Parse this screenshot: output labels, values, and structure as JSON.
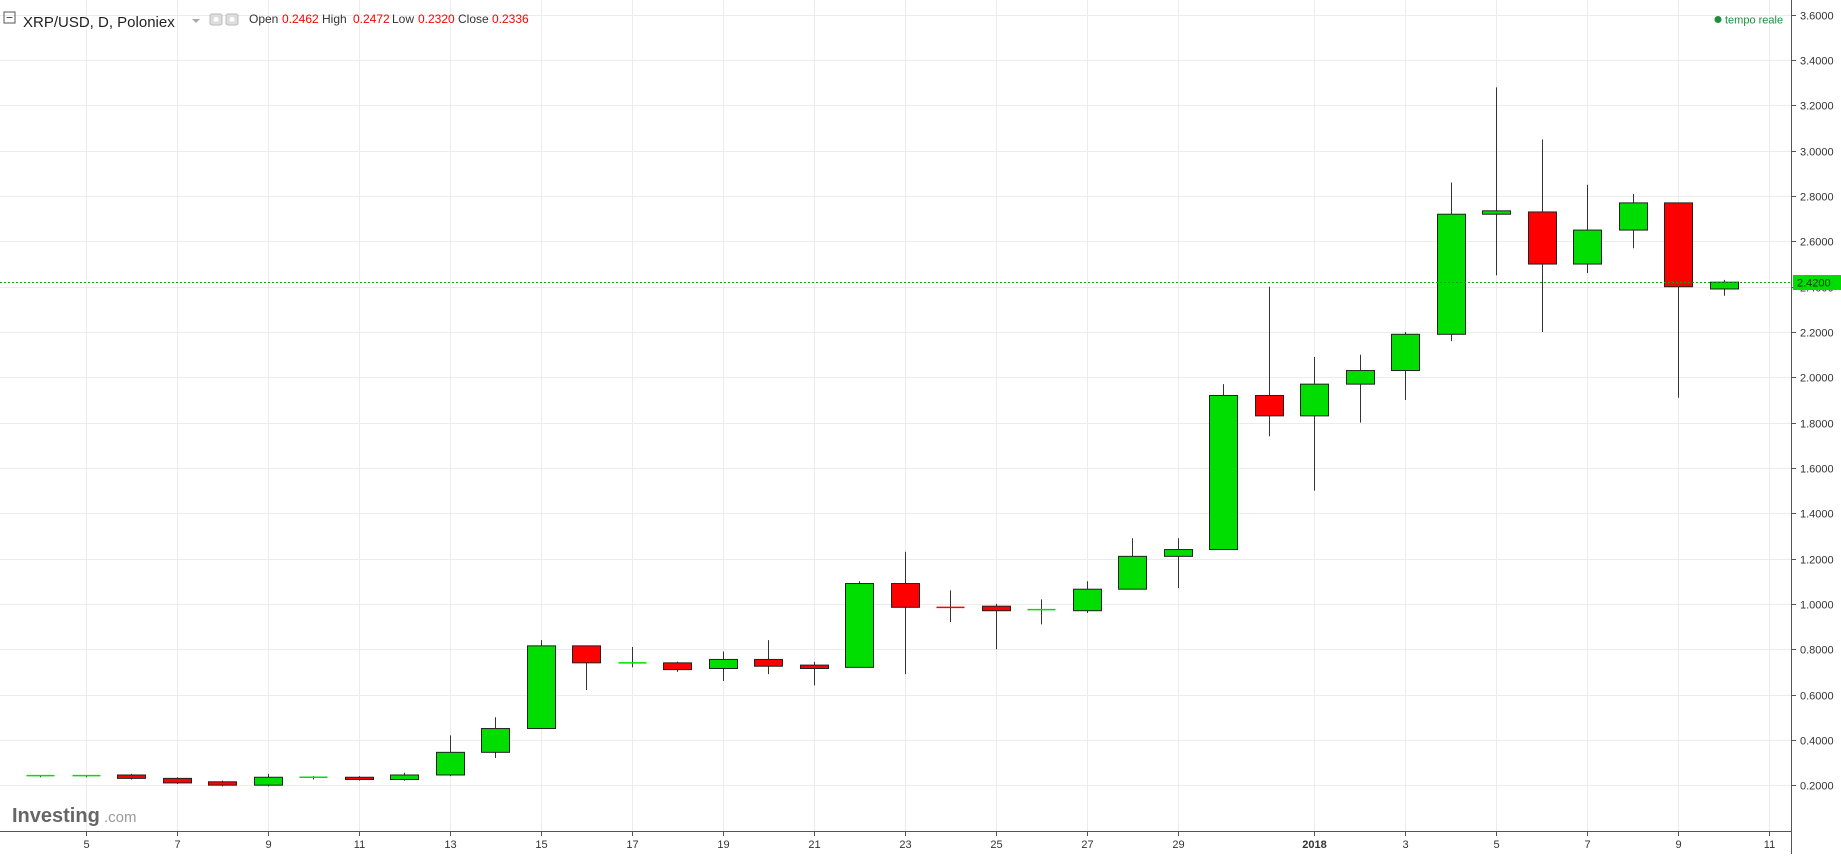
{
  "header": {
    "symbol": "XRP/USD, D, Poloniex",
    "open_label": "Open",
    "open_value": "0.2462",
    "high_label": "High",
    "high_value": "0.2472",
    "low_label": "Low",
    "low_value": "0.2320",
    "close_label": "Close",
    "close_value": "0.2336",
    "realtime_label": "tempo reale"
  },
  "logo": {
    "main": "Investing",
    "suffix": ".com"
  },
  "price_label": "2.4200",
  "colors": {
    "up": "#00dd00",
    "down": "#ff0000",
    "value_text": "#ff0000",
    "current_line": "#00aa00",
    "realtime_dot": "#1e8e3e"
  },
  "chart_data": {
    "type": "candlestick",
    "title": "XRP/USD, D, Poloniex",
    "y_ticks": [
      "0.2000",
      "0.4000",
      "0.6000",
      "0.8000",
      "1.0000",
      "1.2000",
      "1.4000",
      "1.6000",
      "1.8000",
      "2.0000",
      "2.2000",
      "2.4000",
      "2.6000",
      "2.8000",
      "3.0000",
      "3.2000",
      "3.4000",
      "3.6000"
    ],
    "ylim": [
      0.0,
      3.65
    ],
    "x_ticks": [
      {
        "label": "5",
        "date": "2017-12-05"
      },
      {
        "label": "7",
        "date": "2017-12-07"
      },
      {
        "label": "9",
        "date": "2017-12-09"
      },
      {
        "label": "11",
        "date": "2017-12-11"
      },
      {
        "label": "13",
        "date": "2017-12-13"
      },
      {
        "label": "15",
        "date": "2017-12-15"
      },
      {
        "label": "17",
        "date": "2017-12-17"
      },
      {
        "label": "19",
        "date": "2017-12-19"
      },
      {
        "label": "21",
        "date": "2017-12-21"
      },
      {
        "label": "23",
        "date": "2017-12-23"
      },
      {
        "label": "25",
        "date": "2017-12-25"
      },
      {
        "label": "27",
        "date": "2017-12-27"
      },
      {
        "label": "29",
        "date": "2017-12-29"
      },
      {
        "label": "2018",
        "date": "2018-01-01"
      },
      {
        "label": "3",
        "date": "2018-01-03"
      },
      {
        "label": "5",
        "date": "2018-01-05"
      },
      {
        "label": "7",
        "date": "2018-01-07"
      },
      {
        "label": "9",
        "date": "2018-01-09"
      },
      {
        "label": "11",
        "date": "2018-01-11"
      }
    ],
    "current_price": 2.42,
    "grid": true,
    "candles": [
      {
        "date": "2017-12-04",
        "open": 0.24,
        "high": 0.245,
        "low": 0.235,
        "close": 0.242
      },
      {
        "date": "2017-12-05",
        "open": 0.24,
        "high": 0.245,
        "low": 0.235,
        "close": 0.242
      },
      {
        "date": "2017-12-06",
        "open": 0.245,
        "high": 0.25,
        "low": 0.225,
        "close": 0.23
      },
      {
        "date": "2017-12-07",
        "open": 0.23,
        "high": 0.235,
        "low": 0.205,
        "close": 0.21
      },
      {
        "date": "2017-12-08",
        "open": 0.215,
        "high": 0.22,
        "low": 0.195,
        "close": 0.2
      },
      {
        "date": "2017-12-09",
        "open": 0.2,
        "high": 0.25,
        "low": 0.195,
        "close": 0.235
      },
      {
        "date": "2017-12-10",
        "open": 0.23,
        "high": 0.24,
        "low": 0.225,
        "close": 0.235
      },
      {
        "date": "2017-12-11",
        "open": 0.235,
        "high": 0.24,
        "low": 0.22,
        "close": 0.225
      },
      {
        "date": "2017-12-12",
        "open": 0.225,
        "high": 0.255,
        "low": 0.22,
        "close": 0.245
      },
      {
        "date": "2017-12-13",
        "open": 0.245,
        "high": 0.42,
        "low": 0.24,
        "close": 0.345
      },
      {
        "date": "2017-12-14",
        "open": 0.345,
        "high": 0.5,
        "low": 0.32,
        "close": 0.45
      },
      {
        "date": "2017-12-15",
        "open": 0.45,
        "high": 0.84,
        "low": 0.45,
        "close": 0.815
      },
      {
        "date": "2017-12-16",
        "open": 0.815,
        "high": 0.815,
        "low": 0.62,
        "close": 0.74
      },
      {
        "date": "2017-12-17",
        "open": 0.735,
        "high": 0.81,
        "low": 0.72,
        "close": 0.74
      },
      {
        "date": "2017-12-18",
        "open": 0.74,
        "high": 0.745,
        "low": 0.7,
        "close": 0.71
      },
      {
        "date": "2017-12-19",
        "open": 0.715,
        "high": 0.79,
        "low": 0.66,
        "close": 0.755
      },
      {
        "date": "2017-12-20",
        "open": 0.755,
        "high": 0.84,
        "low": 0.69,
        "close": 0.725
      },
      {
        "date": "2017-12-21",
        "open": 0.73,
        "high": 0.745,
        "low": 0.64,
        "close": 0.715
      },
      {
        "date": "2017-12-22",
        "open": 0.72,
        "high": 1.1,
        "low": 0.72,
        "close": 1.09
      },
      {
        "date": "2017-12-23",
        "open": 1.09,
        "high": 1.23,
        "low": 0.69,
        "close": 0.985
      },
      {
        "date": "2017-12-24",
        "open": 0.985,
        "high": 1.06,
        "low": 0.92,
        "close": 0.98
      },
      {
        "date": "2017-12-25",
        "open": 0.99,
        "high": 1.0,
        "low": 0.8,
        "close": 0.97
      },
      {
        "date": "2017-12-26",
        "open": 0.97,
        "high": 1.02,
        "low": 0.91,
        "close": 0.975
      },
      {
        "date": "2017-12-27",
        "open": 0.97,
        "high": 1.1,
        "low": 0.96,
        "close": 1.065
      },
      {
        "date": "2017-12-28",
        "open": 1.065,
        "high": 1.29,
        "low": 1.065,
        "close": 1.21
      },
      {
        "date": "2017-12-29",
        "open": 1.21,
        "high": 1.29,
        "low": 1.07,
        "close": 1.24
      },
      {
        "date": "2017-12-30",
        "open": 1.24,
        "high": 1.97,
        "low": 1.24,
        "close": 1.92
      },
      {
        "date": "2017-12-31",
        "open": 1.92,
        "high": 2.4,
        "low": 1.74,
        "close": 1.83
      },
      {
        "date": "2018-01-01",
        "open": 1.83,
        "high": 2.09,
        "low": 1.5,
        "close": 1.97
      },
      {
        "date": "2018-01-02",
        "open": 1.97,
        "high": 2.1,
        "low": 1.8,
        "close": 2.03
      },
      {
        "date": "2018-01-03",
        "open": 2.03,
        "high": 2.2,
        "low": 1.9,
        "close": 2.19
      },
      {
        "date": "2018-01-04",
        "open": 2.19,
        "high": 2.86,
        "low": 2.16,
        "close": 2.72
      },
      {
        "date": "2018-01-05",
        "open": 2.72,
        "high": 3.28,
        "low": 2.45,
        "close": 2.735
      },
      {
        "date": "2018-01-06",
        "open": 2.73,
        "high": 3.05,
        "low": 2.2,
        "close": 2.5
      },
      {
        "date": "2018-01-07",
        "open": 2.5,
        "high": 2.85,
        "low": 2.46,
        "close": 2.65
      },
      {
        "date": "2018-01-08",
        "open": 2.65,
        "high": 2.81,
        "low": 2.57,
        "close": 2.77
      },
      {
        "date": "2018-01-09",
        "open": 2.77,
        "high": 2.77,
        "low": 1.91,
        "close": 2.4
      },
      {
        "date": "2018-01-10",
        "open": 2.39,
        "high": 2.43,
        "low": 2.36,
        "close": 2.42
      }
    ]
  }
}
